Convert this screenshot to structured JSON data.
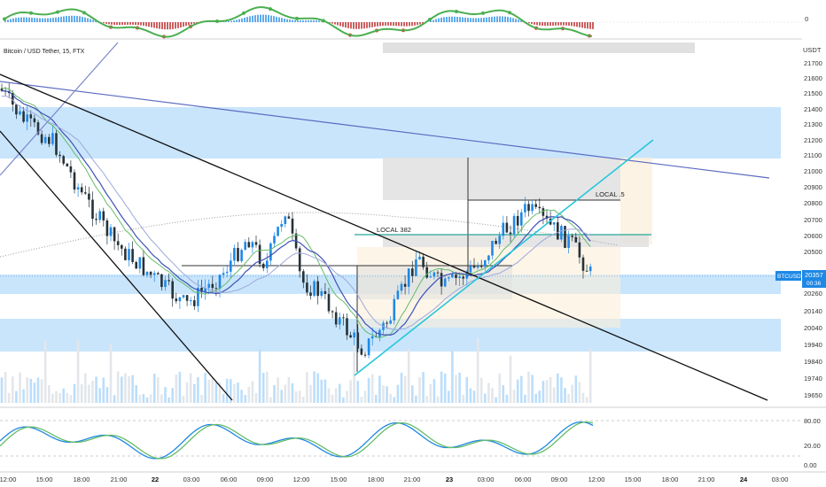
{
  "chart_data": {
    "type": "candlestick",
    "symbol_legend": "Bitcoin / USD Tether, 15, FTX",
    "currency": "USDT",
    "ticker": "BTCUSDT",
    "last_price": "20357",
    "countdown": "00:36",
    "y_ticks": [
      "21700",
      "21600",
      "21500",
      "21400",
      "21300",
      "21200",
      "21100",
      "21000",
      "20900",
      "20800",
      "20700",
      "20600",
      "20500",
      "20260",
      "20140",
      "20040",
      "19940",
      "19840",
      "19740",
      "19650"
    ],
    "x_ticks": [
      "12:00",
      "15:00",
      "18:00",
      "21:00",
      "22",
      "03:00",
      "06:00",
      "09:00",
      "12:00",
      "15:00",
      "18:00",
      "21:00",
      "23",
      "03:00",
      "06:00",
      "09:00",
      "12:00",
      "15:00",
      "18:00",
      "21:00",
      "24",
      "03:00"
    ],
    "bold_x_ticks": [
      "22",
      "23",
      "24"
    ],
    "ylim": [
      19600,
      21750
    ],
    "annotations": [
      "LOCAL .5",
      "LOCAL 382"
    ],
    "top_pane_ticks": [
      "0"
    ],
    "oscillator_ticks": [
      "80.00",
      "20.00",
      "0.00"
    ],
    "colors": {
      "up": "#1e88e5",
      "down": "#263238",
      "zone": "#bbdefb",
      "trend_blue": "#5c6bc0",
      "channel_green": "#26a69a",
      "bullish_osc": "#4caf50",
      "bearish_osc": "#e53935"
    }
  }
}
